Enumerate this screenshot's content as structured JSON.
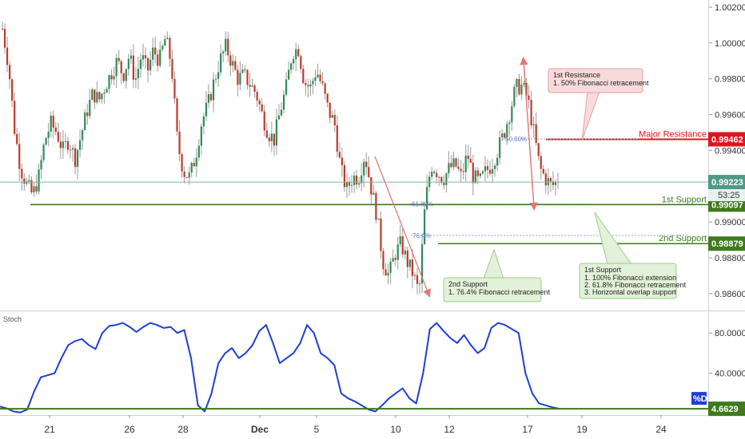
{
  "colors": {
    "bull": "#2e8b57",
    "bear": "#c0392b",
    "wick": "#9a9a9a",
    "resistance": "#e0141e",
    "support": "#3f7a1d",
    "stoch_line": "#1f3fd1",
    "current_line": "#7fb6a0",
    "current_tag": "#4f9a86",
    "resistance_box_fill": "#f9dada",
    "resistance_box_stroke": "#e6a0a0",
    "support_box_fill": "#e2f1d9",
    "support_box_stroke": "#9fcc8a",
    "fib_dot": "#8aa8dc",
    "arrow_red": "#e07a7a"
  },
  "price_axis": {
    "ticks": [
      "1.00200",
      "1.00000",
      "0.99800",
      "0.99600",
      "0.99400",
      "0.99200",
      "0.99000",
      "0.98800",
      "0.98600"
    ],
    "range": [
      0.9851,
      1.0024
    ]
  },
  "stoch_axis": {
    "ticks": [
      "80.0000",
      "40.0000"
    ],
    "range": [
      0,
      100
    ]
  },
  "x_axis": {
    "labels": [
      {
        "text": "21",
        "bold": false
      },
      {
        "text": "26",
        "bold": false
      },
      {
        "text": "28",
        "bold": false
      },
      {
        "text": "Dec",
        "bold": true
      },
      {
        "text": "5",
        "bold": false
      },
      {
        "text": "10",
        "bold": false
      },
      {
        "text": "12",
        "bold": false
      },
      {
        "text": "17",
        "bold": false
      },
      {
        "text": "19",
        "bold": false
      },
      {
        "text": "24",
        "bold": false
      }
    ]
  },
  "levels": {
    "major_resistance": {
      "label": "Major Resistance",
      "value": 0.99462,
      "tag": "0.99462"
    },
    "first_support": {
      "label": "1st Support",
      "value": 0.99097,
      "tag": "0.99097"
    },
    "second_support": {
      "label": "2nd Support",
      "value": 0.98879,
      "tag": "0.98879"
    },
    "current": {
      "value": 0.99223,
      "tag": "0.99223",
      "countdown": "53:25"
    }
  },
  "fib_labels": {
    "f50": "50.00%",
    "f618": "61.80%",
    "f764": "76.4%"
  },
  "annotations": {
    "resistance": {
      "title": "1st Resistance",
      "lines": [
        "1. 50% Fibonacci retracement"
      ]
    },
    "support1": {
      "title": "1st Support",
      "lines": [
        "1. 100% Fibonacci extension",
        "2. 61.8% Fibonacci retracement",
        "3. Horizontal overlap support"
      ]
    },
    "support2": {
      "title": "2nd Support",
      "lines": [
        "1. 76.4% Fibonacci retracement"
      ]
    }
  },
  "stoch": {
    "pane_label": "Stoch",
    "badge": "%D",
    "last_value": "4.6629",
    "level": 4.6629
  },
  "chart_data": [
    {
      "type": "candlestick",
      "title": "",
      "x_labels": [
        "21",
        "26",
        "28",
        "Dec",
        "5",
        "10",
        "12",
        "17",
        "19",
        "24"
      ],
      "ylim": [
        0.9851,
        1.0024
      ],
      "close_path": [
        1.0008,
        0.9988,
        0.9952,
        0.993,
        0.9921,
        0.9915,
        0.9925,
        0.9945,
        0.9955,
        0.995,
        0.994,
        0.9946,
        0.9935,
        0.9948,
        0.9962,
        0.9972,
        0.9968,
        0.9976,
        0.9983,
        0.999,
        0.9982,
        0.9993,
        0.9979,
        0.9993,
        0.9984,
        0.9996,
        0.999,
        1.0003,
        0.9988,
        0.9944,
        0.9928,
        0.9925,
        0.9937,
        0.9956,
        0.9965,
        0.9978,
        0.999,
        0.9998,
        0.9989,
        0.998,
        0.9982,
        0.9977,
        0.9972,
        0.996,
        0.995,
        0.9946,
        0.9962,
        0.9975,
        0.9995,
        0.9997,
        0.9978,
        0.9975,
        0.9985,
        0.9975,
        0.9962,
        0.9955,
        0.993,
        0.9918,
        0.9925,
        0.9925,
        0.9938,
        0.992,
        0.9904,
        0.9878,
        0.987,
        0.9882,
        0.9888,
        0.9878,
        0.9871,
        0.986,
        0.991,
        0.9932,
        0.9928,
        0.9924,
        0.993,
        0.9932,
        0.9925,
        0.9938,
        0.9925,
        0.9922,
        0.9928,
        0.9932,
        0.994,
        0.9949,
        0.9961,
        0.9975,
        0.9976,
        0.9969,
        0.995,
        0.993,
        0.9924,
        0.992,
        0.9923
      ],
      "current": 0.99223
    },
    {
      "type": "line",
      "title": "",
      "series_name": "%D",
      "ylim": [
        0,
        100
      ],
      "values": [
        7,
        5,
        2,
        1,
        4,
        22,
        36,
        38,
        40,
        55,
        68,
        72,
        74,
        68,
        64,
        80,
        87,
        88,
        90,
        86,
        81,
        86,
        90,
        88,
        85,
        86,
        80,
        83,
        55,
        8,
        2,
        20,
        50,
        60,
        65,
        55,
        60,
        68,
        82,
        88,
        70,
        50,
        55,
        60,
        70,
        88,
        80,
        60,
        55,
        48,
        20,
        15,
        12,
        8,
        4,
        2,
        8,
        15,
        20,
        25,
        15,
        10,
        40,
        84,
        90,
        82,
        75,
        70,
        78,
        68,
        60,
        65,
        85,
        90,
        88,
        84,
        80,
        40,
        20,
        10,
        8,
        6,
        4.6629
      ]
    }
  ]
}
